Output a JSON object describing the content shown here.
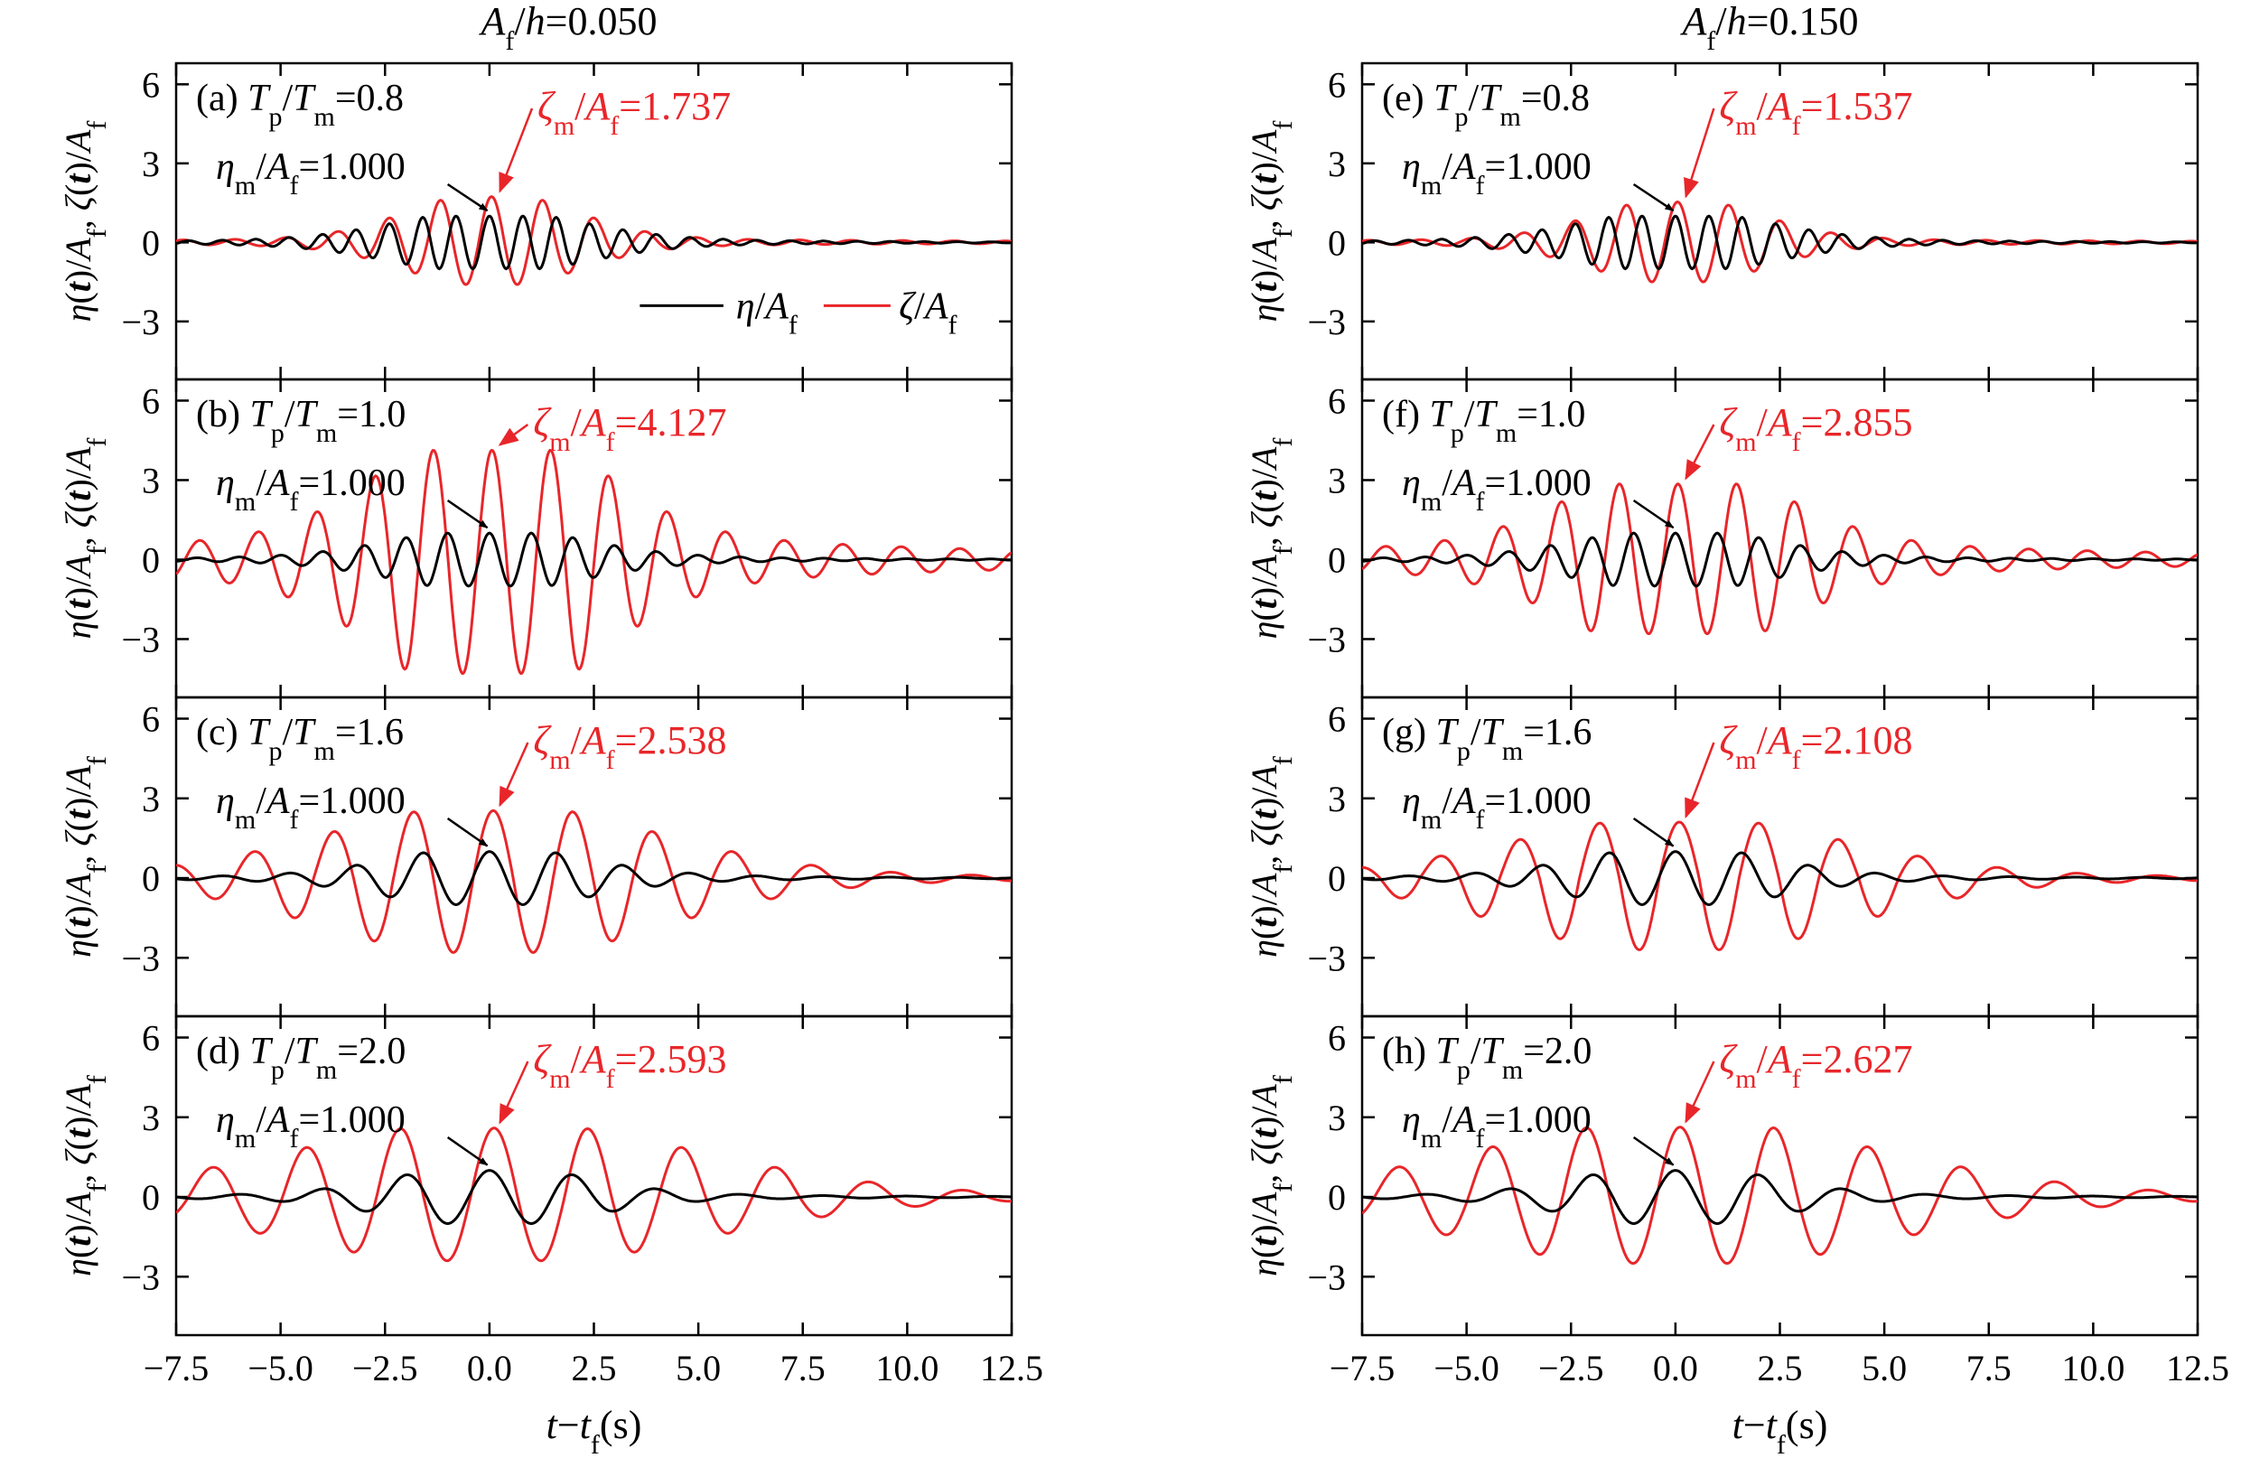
{
  "column_titles": [
    "A_f/h=0.050",
    "A_f/h=0.150"
  ],
  "x_axis": {
    "label": "t−t_f(s)",
    "range": [
      -7.5,
      12.5
    ],
    "ticks": [
      "−7.5",
      "−5.0",
      "−2.5",
      "0.0",
      "2.5",
      "5.0",
      "7.5",
      "10.0",
      "12.5"
    ]
  },
  "y_axis": {
    "label": "η(t)/A_f, ζ(t)/A_f",
    "range": [
      -5.2,
      6.8
    ],
    "ticks": [
      "6",
      "3",
      "0",
      "−3"
    ]
  },
  "legend": {
    "black": "η/A_f",
    "red": "ζ/A_f",
    "placement": "inside panel (a), bottom-right"
  },
  "colors": {
    "eta": "#000000",
    "zeta": "#e8262a",
    "axes": "#000000",
    "background": "#ffffff"
  },
  "chart_data": [
    {
      "type": "line",
      "panel": "(a)",
      "label": "T_p/T_m=0.8",
      "eta_label": "η_m/A_f=1.000",
      "zeta_label": "ζ_m/A_f=1.737",
      "Ap": 0.8,
      "peak_eta": 1.0,
      "peak_zeta": 1.737,
      "zeta_trough": -1.6,
      "series": [
        {
          "name": "η/A_f",
          "color": "#000000"
        },
        {
          "name": "ζ/A_f",
          "color": "#e8262a"
        }
      ]
    },
    {
      "type": "line",
      "panel": "(b)",
      "label": "T_p/T_m=1.0",
      "eta_label": "η_m/A_f=1.000",
      "zeta_label": "ζ_m/A_f=4.127",
      "Ap": 1.0,
      "peak_eta": 1.0,
      "peak_zeta": 4.127,
      "zeta_trough": -4.3,
      "series": [
        {
          "name": "η/A_f",
          "color": "#000000"
        },
        {
          "name": "ζ/A_f",
          "color": "#e8262a"
        }
      ]
    },
    {
      "type": "line",
      "panel": "(c)",
      "label": "T_p/T_m=1.6",
      "eta_label": "η_m/A_f=1.000",
      "zeta_label": "ζ_m/A_f=2.538",
      "Ap": 1.6,
      "peak_eta": 1.0,
      "peak_zeta": 2.538,
      "zeta_trough": -2.8,
      "series": [
        {
          "name": "η/A_f",
          "color": "#000000"
        },
        {
          "name": "ζ/A_f",
          "color": "#e8262a"
        }
      ]
    },
    {
      "type": "line",
      "panel": "(d)",
      "label": "T_p/T_m=2.0",
      "eta_label": "η_m/A_f=1.000",
      "zeta_label": "ζ_m/A_f=2.593",
      "Ap": 2.0,
      "peak_eta": 1.0,
      "peak_zeta": 2.593,
      "zeta_trough": -2.4,
      "series": [
        {
          "name": "η/A_f",
          "color": "#000000"
        },
        {
          "name": "ζ/A_f",
          "color": "#e8262a"
        }
      ]
    },
    {
      "type": "line",
      "panel": "(e)",
      "label": "T_p/T_m=0.8",
      "eta_label": "η_m/A_f=1.000",
      "zeta_label": "ζ_m/A_f=1.537",
      "Ap": 0.8,
      "peak_eta": 1.0,
      "peak_zeta": 1.537,
      "zeta_trough": -1.5,
      "series": [
        {
          "name": "η/A_f",
          "color": "#000000"
        },
        {
          "name": "ζ/A_f",
          "color": "#e8262a"
        }
      ]
    },
    {
      "type": "line",
      "panel": "(f)",
      "label": "T_p/T_m=1.0",
      "eta_label": "η_m/A_f=1.000",
      "zeta_label": "ζ_m/A_f=2.855",
      "Ap": 1.0,
      "peak_eta": 1.0,
      "peak_zeta": 2.855,
      "zeta_trough": -2.8,
      "series": [
        {
          "name": "η/A_f",
          "color": "#000000"
        },
        {
          "name": "ζ/A_f",
          "color": "#e8262a"
        }
      ]
    },
    {
      "type": "line",
      "panel": "(g)",
      "label": "T_p/T_m=1.6",
      "eta_label": "η_m/A_f=1.000",
      "zeta_label": "ζ_m/A_f=2.108",
      "Ap": 1.6,
      "peak_eta": 1.0,
      "peak_zeta": 2.108,
      "zeta_trough": -2.7,
      "series": [
        {
          "name": "η/A_f",
          "color": "#000000"
        },
        {
          "name": "ζ/A_f",
          "color": "#e8262a"
        }
      ]
    },
    {
      "type": "line",
      "panel": "(h)",
      "label": "T_p/T_m=2.0",
      "eta_label": "η_m/A_f=1.000",
      "zeta_label": "ζ_m/A_f=2.627",
      "Ap": 2.0,
      "peak_eta": 1.0,
      "peak_zeta": 2.627,
      "zeta_trough": -2.5,
      "series": [
        {
          "name": "η/A_f",
          "color": "#000000"
        },
        {
          "name": "ζ/A_f",
          "color": "#e8262a"
        }
      ]
    }
  ]
}
